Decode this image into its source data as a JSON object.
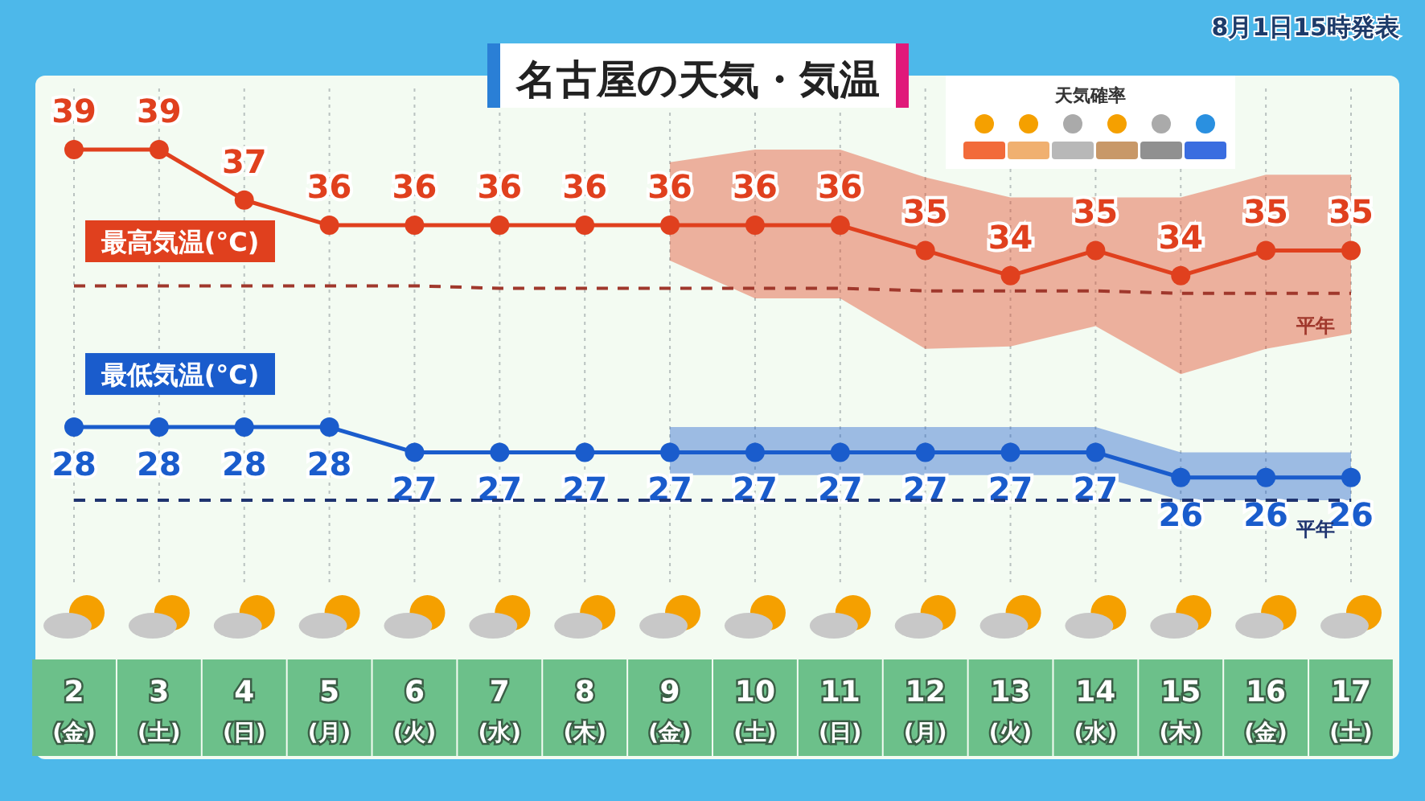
{
  "chart_data": {
    "type": "line",
    "title": "名古屋の天気・気温",
    "subtitle": "8月1日15時発表",
    "annotations": [
      "天気確率"
    ],
    "categories": [
      "2 (金)",
      "3 (土)",
      "4 (日)",
      "5 (月)",
      "6 (火)",
      "7 (水)",
      "8 (木)",
      "9 (金)",
      "10 (土)",
      "11 (日)",
      "12 (月)",
      "13 (火)",
      "14 (水)",
      "15 (木)",
      "16 (金)",
      "17 (土)"
    ],
    "grid": "x",
    "legend": false,
    "marker": "circle",
    "line_style": "solid",
    "series": [
      {
        "name": "最高気温(°C)",
        "color": "#e0401e",
        "values": [
          39,
          39,
          37,
          36,
          36,
          36,
          36,
          36,
          36,
          36,
          35,
          34,
          35,
          34,
          35,
          35
        ],
        "value_labels": [
          "39",
          "39",
          "37",
          "36",
          "36",
          "36",
          "36",
          "36",
          "36",
          "36",
          "35",
          "34",
          "35",
          "34",
          "35",
          "35"
        ],
        "lower": [
          null,
          null,
          null,
          null,
          null,
          null,
          null,
          34.6,
          33.1,
          33.1,
          31.1,
          31.2,
          32.0,
          30.1,
          31.1,
          31.7
        ],
        "upper": [
          null,
          null,
          null,
          null,
          null,
          null,
          null,
          38.5,
          39.0,
          39.0,
          37.9,
          37.1,
          37.1,
          37.1,
          38.0,
          38.0
        ]
      },
      {
        "name": "最低気温(°C)",
        "color": "#1a5ccc",
        "values": [
          28,
          28,
          28,
          28,
          27,
          27,
          27,
          27,
          27,
          27,
          27,
          27,
          27,
          26,
          26,
          26
        ],
        "value_labels": [
          "28",
          "28",
          "28",
          "28",
          "27",
          "27",
          "27",
          "27",
          "27",
          "27",
          "27",
          "27",
          "27",
          "26",
          "26",
          "26"
        ],
        "lower": [
          null,
          null,
          null,
          null,
          null,
          null,
          null,
          26.1,
          26.1,
          26.1,
          26.1,
          26.1,
          26.1,
          25.1,
          25.1,
          25.1
        ],
        "upper": [
          null,
          null,
          null,
          null,
          null,
          null,
          null,
          28.0,
          28.0,
          28.0,
          28.0,
          28.0,
          28.0,
          27.0,
          27.0,
          27.0
        ]
      },
      {
        "name": "平年",
        "color": "#a0382c",
        "line_style": "dashed",
        "marker": "none",
        "values": [
          33.6,
          33.6,
          33.6,
          33.6,
          33.6,
          33.5,
          33.5,
          33.5,
          33.5,
          33.5,
          33.4,
          33.4,
          33.4,
          33.3,
          33.3,
          33.3
        ]
      },
      {
        "name": "平年",
        "color": "#1f3470",
        "line_style": "dashed",
        "marker": "none",
        "values": [
          25.1,
          25.1,
          25.1,
          25.1,
          25.1,
          25.1,
          25.1,
          25.1,
          25.1,
          25.1,
          25.1,
          25.1,
          25.1,
          25.1,
          25.1,
          25.1
        ]
      }
    ]
  }
}
